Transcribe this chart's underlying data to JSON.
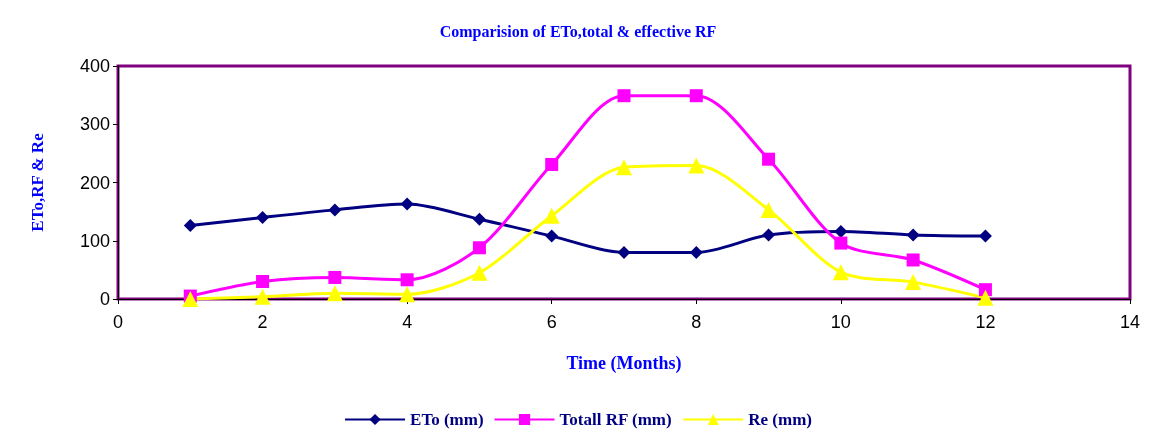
{
  "chart_data": {
    "type": "line",
    "title": "Comparision of ETo,total & effective RF",
    "xlabel": "Time (Months)",
    "ylabel": "ETo,RF & Re",
    "x": [
      1,
      2,
      3,
      4,
      5,
      6,
      7,
      8,
      9,
      10,
      11,
      12
    ],
    "series": [
      {
        "name": "ETo (mm)",
        "color": "#000080",
        "marker": "diamond",
        "values": [
          126,
          140,
          153,
          163,
          137,
          108,
          80,
          80,
          110,
          116,
          110,
          108
        ]
      },
      {
        "name": "Totall RF (mm)",
        "color": "#ff00ff",
        "marker": "square",
        "values": [
          5,
          30,
          37,
          33,
          88,
          231,
          349,
          349,
          240,
          96,
          67,
          16
        ]
      },
      {
        "name": "Re (mm)",
        "color": "#ffff00",
        "marker": "triangle",
        "values": [
          0,
          4,
          10,
          8,
          45,
          143,
          226,
          229,
          153,
          46,
          29,
          2
        ]
      }
    ],
    "xlim": [
      0,
      14
    ],
    "xticks": [
      0,
      2,
      4,
      6,
      8,
      10,
      12,
      14
    ],
    "ylim": [
      0,
      400
    ],
    "yticks": [
      0,
      100,
      200,
      300,
      400
    ],
    "grid": false,
    "legend": "bottom"
  }
}
